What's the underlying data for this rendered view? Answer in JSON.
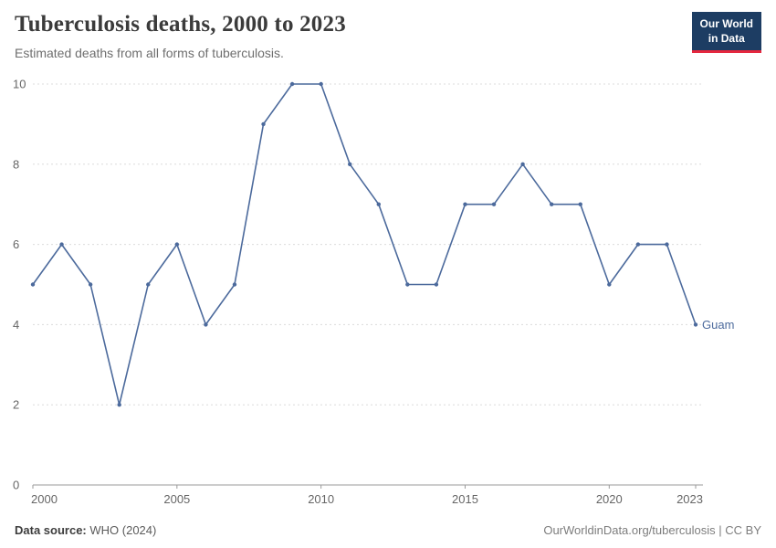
{
  "header": {
    "title": "Tuberculosis deaths, 2000 to 2023",
    "subtitle": "Estimated deaths from all forms of tuberculosis.",
    "logo": {
      "line1": "Our World",
      "line2": "in Data"
    }
  },
  "chart_data": {
    "type": "line",
    "title": "Tuberculosis deaths, 2000 to 2023",
    "xlabel": "",
    "ylabel": "",
    "xlim": [
      2000,
      2023
    ],
    "ylim": [
      0,
      10
    ],
    "xticks": [
      2000,
      2005,
      2010,
      2015,
      2020,
      2023
    ],
    "yticks": [
      0,
      2,
      4,
      6,
      8,
      10
    ],
    "grid": "horizontal-dashed",
    "legend": "end-of-line-label",
    "x": [
      2000,
      2001,
      2002,
      2003,
      2004,
      2005,
      2006,
      2007,
      2008,
      2009,
      2010,
      2011,
      2012,
      2013,
      2014,
      2015,
      2016,
      2017,
      2018,
      2019,
      2020,
      2021,
      2022,
      2023
    ],
    "series": [
      {
        "name": "Guam",
        "color": "#4c6a9c",
        "x": [
          2000,
          2001,
          2002,
          2003,
          2004,
          2005,
          2006,
          2007,
          2008,
          2009,
          2010,
          2011,
          2012,
          2013,
          2014,
          2015,
          2016,
          2017,
          2018,
          2019,
          2020,
          2021,
          2022,
          2023
        ],
        "values": [
          5,
          6,
          5,
          2,
          5,
          6,
          4,
          5,
          9,
          10,
          10,
          8,
          7,
          5,
          5,
          7,
          7,
          8,
          7,
          7,
          5,
          6,
          6,
          4
        ]
      }
    ],
    "colors": {
      "grid": "#dcdcdc",
      "axis": "#9a9a9a",
      "tick_text": "#666666"
    }
  },
  "footer": {
    "source_label": "Data source:",
    "source_value": "WHO (2024)",
    "right_text": "OurWorldinData.org/tuberculosis | CC BY"
  }
}
